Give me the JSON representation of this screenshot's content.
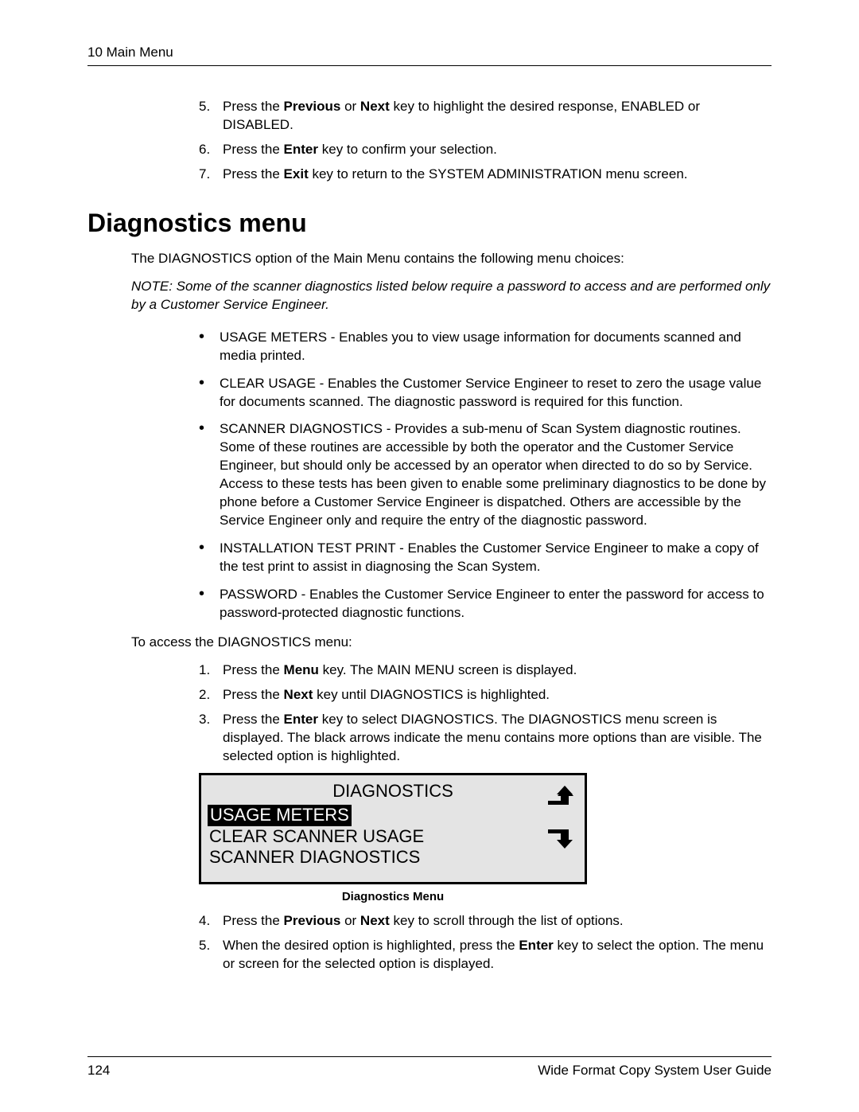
{
  "header": {
    "chapter": "10 Main Menu"
  },
  "intro_steps": [
    {
      "n": "5.",
      "html": "Press the <b>Previous</b> or <b>Next</b> key to highlight the desired response, ENABLED or DISABLED."
    },
    {
      "n": "6.",
      "html": "Press the <b>Enter</b> key to confirm your selection."
    },
    {
      "n": "7.",
      "html": "Press the <b>Exit</b> key to return to the SYSTEM ADMINISTRATION menu screen."
    }
  ],
  "section_title": "Diagnostics menu",
  "intro_para": "The DIAGNOSTICS option of the Main Menu contains the following menu choices:",
  "note_para": "NOTE:  Some of the scanner diagnostics listed below require a password to access and are performed only by a Customer Service Engineer.",
  "bullets": [
    "USAGE METERS - Enables you to view usage information for documents scanned and media printed.",
    "CLEAR  USAGE - Enables the Customer Service Engineer to reset to zero the usage value for documents scanned.  The diagnostic password is required for this function.",
    "SCANNER DIAGNOSTICS - Provides a sub-menu of Scan System diagnostic routines.  Some of these routines are accessible by both the operator and the Customer Service Engineer, but should only be accessed by an operator when directed to do so by Service.  Access to these tests has been given to enable some preliminary diagnostics to be done by phone before a Customer Service Engineer is dispatched. Others are accessible by the Service Engineer only and require the entry of the diagnostic password.",
    "INSTALLATION TEST PRINT - Enables the Customer Service Engineer to make a copy of the test print to assist in diagnosing the Scan System.",
    "PASSWORD - Enables the Customer Service Engineer to enter the password for access to password-protected diagnostic functions."
  ],
  "access_intro": "To access the DIAGNOSTICS menu:",
  "access_steps": [
    {
      "n": "1.",
      "html": "Press the <b>Menu</b> key.  The MAIN MENU screen is displayed."
    },
    {
      "n": "2.",
      "html": "Press the <b>Next</b> key until DIAGNOSTICS is highlighted."
    },
    {
      "n": "3.",
      "html": "Press the <b>Enter</b> key to select DIAGNOSTICS.  The DIAGNOSTICS menu screen is displayed.  The black arrows indicate the menu contains more options than are visible.  The selected option is highlighted."
    }
  ],
  "lcd": {
    "title": "DIAGNOSTICS",
    "rows": [
      {
        "text": "USAGE METERS",
        "selected": true
      },
      {
        "text": "CLEAR SCANNER USAGE",
        "selected": false
      },
      {
        "text": "SCANNER DIAGNOSTICS",
        "selected": false
      }
    ],
    "caption": "Diagnostics Menu",
    "bg_color": "#e4e4e4",
    "border_color": "#000000"
  },
  "post_steps": [
    {
      "n": "4.",
      "html": "Press the <b>Previous</b> or <b>Next</b> key to scroll through the list of options."
    },
    {
      "n": "5.",
      "html": "When the desired option is highlighted, press the <b>Enter</b> key to select the option.  The menu or screen for the selected option is displayed."
    }
  ],
  "footer": {
    "page_number": "124",
    "doc_title": "Wide Format Copy System User Guide"
  }
}
